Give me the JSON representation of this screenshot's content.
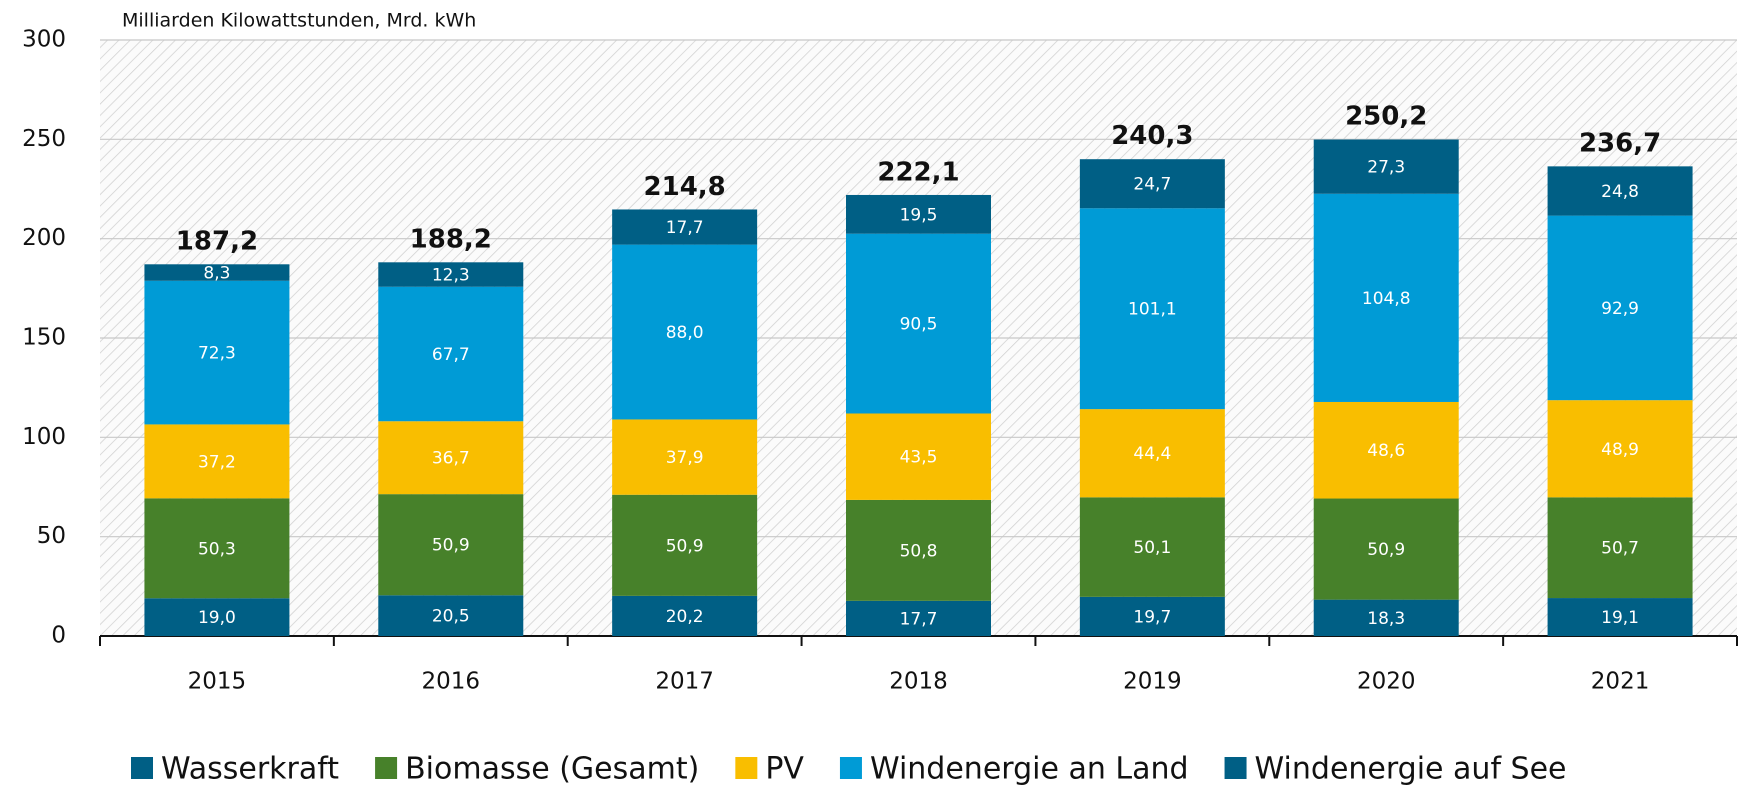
{
  "chart_data": {
    "type": "stacked_bar",
    "subtitle": "Milliarden Kilowattstunden, Mrd. kWh",
    "categories": [
      "2015",
      "2016",
      "2017",
      "2018",
      "2019",
      "2020",
      "2021"
    ],
    "series": [
      {
        "name": "Wasserkraft",
        "color": "#005f85",
        "values": [
          19.0,
          20.5,
          20.2,
          17.7,
          19.7,
          18.3,
          19.1
        ],
        "value_labels": [
          "19,0",
          "20,5",
          "20,2",
          "17,7",
          "19,7",
          "18,3",
          "19,1"
        ]
      },
      {
        "name": "Biomasse (Gesamt)",
        "color": "#47812a",
        "values": [
          50.3,
          50.9,
          50.9,
          50.8,
          50.1,
          50.9,
          50.7
        ],
        "value_labels": [
          "50,3",
          "50,9",
          "50,9",
          "50,8",
          "50,1",
          "50,9",
          "50,7"
        ]
      },
      {
        "name": "PV",
        "color": "#f9be00",
        "values": [
          37.2,
          36.7,
          37.9,
          43.5,
          44.4,
          48.6,
          48.9
        ],
        "value_labels": [
          "37,2",
          "36,7",
          "37,9",
          "43,5",
          "44,4",
          "48,6",
          "48,9"
        ]
      },
      {
        "name": "Windenergie an Land",
        "color": "#009bd6",
        "values": [
          72.3,
          67.7,
          88.0,
          90.5,
          101.1,
          104.8,
          92.9
        ],
        "value_labels": [
          "72,3",
          "67,7",
          "88,0",
          "90,5",
          "101,1",
          "104,8",
          "92,9"
        ]
      },
      {
        "name": "Windenergie auf See",
        "color": "#005f85",
        "values": [
          8.3,
          12.3,
          17.7,
          19.5,
          24.7,
          27.3,
          24.8
        ],
        "value_labels": [
          "8,3",
          "12,3",
          "17,7",
          "19,5",
          "24,7",
          "27,3",
          "24,8"
        ]
      }
    ],
    "totals": [
      187.2,
      188.2,
      214.8,
      222.1,
      240.3,
      250.2,
      236.7
    ],
    "total_labels": [
      "187,2",
      "188,2",
      "214,8",
      "222,1",
      "240,3",
      "250,2",
      "236,7"
    ],
    "ylim": [
      0,
      300
    ],
    "yticks": [
      0,
      50,
      100,
      150,
      200,
      250,
      300
    ],
    "grid": true
  }
}
